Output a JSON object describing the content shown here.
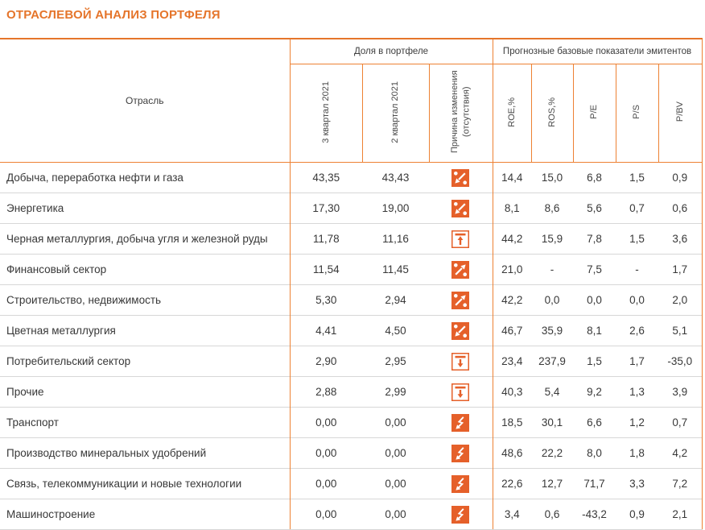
{
  "title": "ОТРАСЛЕВОЙ АНАЛИЗ ПОРТФЕЛЯ",
  "colors": {
    "accent": "#e5752b",
    "grid_orange": "#ed8133",
    "icon_orange": "#e5602a",
    "row_line": "#d7d7d7",
    "text": "#3b3b3b"
  },
  "table": {
    "industry_header": "Отрасль",
    "group_share": "Доля в портфеле",
    "group_forecast": "Прогнозные базовые показатели эмитентов",
    "share_columns": [
      "3 квартал 2021",
      "2 квартал 2021",
      "Причина изменения (отсутствия)"
    ],
    "metric_columns": [
      "ROE,%",
      "ROS,%",
      "P/E",
      "P/S",
      "P/BV"
    ],
    "icon_legend": {
      "percent-down": "percent-down-arrow-icon",
      "percent-up": "percent-up-arrow-icon",
      "arrow-up-bar": "arrow-up-to-bar-icon",
      "arrow-down-bar": "arrow-down-from-bar-icon",
      "lightning": "lightning-arrow-icon"
    },
    "rows": [
      {
        "industry": "Добыча, переработка нефти и газа",
        "q3_2021": "43,35",
        "q2_2021": "43,43",
        "reason_icon": "percent-down",
        "roe": "14,4",
        "ros": "15,0",
        "pe": "6,8",
        "ps": "1,5",
        "pbv": "0,9"
      },
      {
        "industry": "Энергетика",
        "q3_2021": "17,30",
        "q2_2021": "19,00",
        "reason_icon": "percent-down",
        "roe": "8,1",
        "ros": "8,6",
        "pe": "5,6",
        "ps": "0,7",
        "pbv": "0,6"
      },
      {
        "industry": "Черная металлургия, добыча угля и железной руды",
        "q3_2021": "11,78",
        "q2_2021": "11,16",
        "reason_icon": "arrow-up-bar",
        "roe": "44,2",
        "ros": "15,9",
        "pe": "7,8",
        "ps": "1,5",
        "pbv": "3,6"
      },
      {
        "industry": "Финансовый сектор",
        "q3_2021": "11,54",
        "q2_2021": "11,45",
        "reason_icon": "percent-up",
        "roe": "21,0",
        "ros": "-",
        "pe": "7,5",
        "ps": "-",
        "pbv": "1,7"
      },
      {
        "industry": "Строительство, недвижимость",
        "q3_2021": "5,30",
        "q2_2021": "2,94",
        "reason_icon": "percent-up",
        "roe": "42,2",
        "ros": "0,0",
        "pe": "0,0",
        "ps": "0,0",
        "pbv": "2,0"
      },
      {
        "industry": "Цветная металлургия",
        "q3_2021": "4,41",
        "q2_2021": "4,50",
        "reason_icon": "percent-down",
        "roe": "46,7",
        "ros": "35,9",
        "pe": "8,1",
        "ps": "2,6",
        "pbv": "5,1"
      },
      {
        "industry": "Потребительский сектор",
        "q3_2021": "2,90",
        "q2_2021": "2,95",
        "reason_icon": "arrow-down-bar",
        "roe": "23,4",
        "ros": "237,9",
        "pe": "1,5",
        "ps": "1,7",
        "pbv": "-35,0"
      },
      {
        "industry": "Прочие",
        "q3_2021": "2,88",
        "q2_2021": "2,99",
        "reason_icon": "arrow-down-bar",
        "roe": "40,3",
        "ros": "5,4",
        "pe": "9,2",
        "ps": "1,3",
        "pbv": "3,9"
      },
      {
        "industry": "Транспорт",
        "q3_2021": "0,00",
        "q2_2021": "0,00",
        "reason_icon": "lightning",
        "roe": "18,5",
        "ros": "30,1",
        "pe": "6,6",
        "ps": "1,2",
        "pbv": "0,7"
      },
      {
        "industry": "Производство минеральных удобрений",
        "q3_2021": "0,00",
        "q2_2021": "0,00",
        "reason_icon": "lightning",
        "roe": "48,6",
        "ros": "22,2",
        "pe": "8,0",
        "ps": "1,8",
        "pbv": "4,2"
      },
      {
        "industry": "Связь, телекоммуникации и новые технологии",
        "q3_2021": "0,00",
        "q2_2021": "0,00",
        "reason_icon": "lightning",
        "roe": "22,6",
        "ros": "12,7",
        "pe": "71,7",
        "ps": "3,3",
        "pbv": "7,2"
      },
      {
        "industry": "Машиностроение",
        "q3_2021": "0,00",
        "q2_2021": "0,00",
        "reason_icon": "lightning",
        "roe": "3,4",
        "ros": "0,6",
        "pe": "-43,2",
        "ps": "0,9",
        "pbv": "2,1"
      }
    ]
  }
}
